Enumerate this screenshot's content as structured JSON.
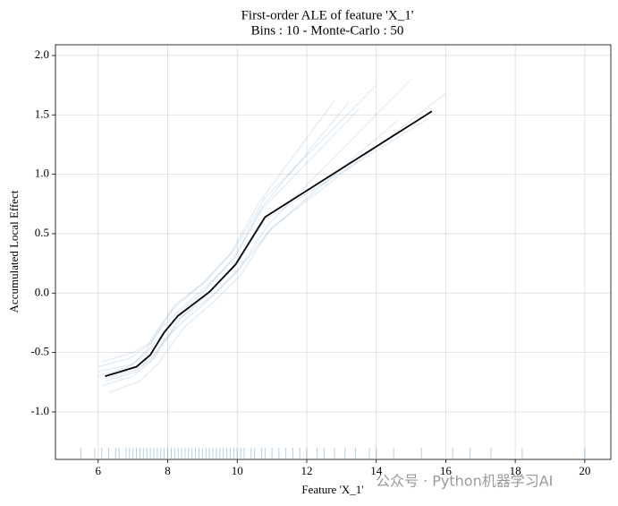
{
  "chart_data": {
    "type": "ale",
    "title": "First-order ALE of feature 'X_1'",
    "subtitle": "Bins : 10 - Monte-Carlo : 50",
    "x_label": "Feature 'X_1'",
    "y_label": "Accumulated Local Effect",
    "watermark": "公众号 · Python机器学习AI",
    "xlim": [
      4.77,
      20.75
    ],
    "ylim": [
      -1.4,
      2.09
    ],
    "xticks": [
      6,
      8,
      10,
      12,
      14,
      16,
      18,
      20
    ],
    "yticks": [
      {
        "value": -1.0,
        "label": "-1.0"
      },
      -0.5,
      {
        "value": 0.0,
        "label": "0.0"
      },
      0.5,
      {
        "value": 1.0,
        "label": "1.0"
      },
      1.5,
      {
        "value": 2.0,
        "label": "2.0"
      }
    ],
    "grid": true,
    "ale": {
      "color": "#000000",
      "x": [
        6.2,
        7.1,
        7.5,
        7.9,
        8.3,
        9.2,
        9.95,
        10.8,
        15.6
      ],
      "values": [
        -0.7,
        -0.62,
        -0.52,
        -0.33,
        -0.19,
        0.01,
        0.24,
        0.64,
        1.53
      ]
    },
    "monte_carlo_color": "#1f77b4",
    "monte_carlo": [
      {
        "x": [
          6.0,
          6.9,
          7.4,
          7.8,
          8.2,
          9.0,
          9.8,
          10.6,
          12.8
        ],
        "values": [
          -0.62,
          -0.55,
          -0.45,
          -0.27,
          -0.12,
          0.08,
          0.33,
          0.75,
          1.62
        ]
      },
      {
        "x": [
          6.1,
          7.0,
          7.5,
          7.9,
          8.4,
          9.2,
          10.0,
          10.9,
          15.0
        ],
        "values": [
          -0.78,
          -0.7,
          -0.58,
          -0.4,
          -0.25,
          -0.05,
          0.18,
          0.58,
          1.8
        ]
      },
      {
        "x": [
          6.2,
          7.1,
          7.6,
          8.0,
          8.3,
          9.3,
          10.1,
          11.0,
          16.0
        ],
        "values": [
          -0.74,
          -0.66,
          -0.52,
          -0.36,
          -0.22,
          -0.02,
          0.22,
          0.55,
          1.68
        ]
      },
      {
        "x": [
          6.0,
          7.0,
          7.4,
          7.8,
          8.3,
          9.1,
          9.9,
          10.7,
          13.5
        ],
        "values": [
          -0.66,
          -0.6,
          -0.48,
          -0.3,
          -0.15,
          0.05,
          0.28,
          0.7,
          1.55
        ]
      },
      {
        "x": [
          6.3,
          7.2,
          7.7,
          8.1,
          8.5,
          9.3,
          10.1,
          10.9,
          14.6
        ],
        "values": [
          -0.84,
          -0.74,
          -0.6,
          -0.44,
          -0.28,
          -0.08,
          0.15,
          0.52,
          1.45
        ]
      },
      {
        "x": [
          6.1,
          7.0,
          7.5,
          7.9,
          8.2,
          9.1,
          9.9,
          10.8,
          14.0
        ],
        "values": [
          -0.58,
          -0.5,
          -0.42,
          -0.24,
          -0.1,
          0.1,
          0.36,
          0.8,
          1.75
        ]
      },
      {
        "x": [
          6.2,
          7.1,
          7.6,
          8.0,
          8.4,
          9.2,
          10.0,
          10.8,
          15.5
        ],
        "values": [
          -0.72,
          -0.64,
          -0.55,
          -0.38,
          -0.2,
          0.0,
          0.25,
          0.62,
          1.47
        ]
      },
      {
        "x": [
          6.0,
          6.9,
          7.4,
          7.9,
          8.3,
          9.1,
          9.9,
          10.7,
          13.2
        ],
        "values": [
          -0.7,
          -0.62,
          -0.5,
          -0.32,
          -0.18,
          0.03,
          0.3,
          0.72,
          1.6
        ]
      }
    ],
    "rug": [
      5.5,
      5.9,
      6.1,
      6.3,
      6.5,
      6.6,
      6.8,
      6.9,
      7.0,
      7.1,
      7.2,
      7.3,
      7.4,
      7.5,
      7.6,
      7.7,
      7.8,
      7.9,
      8.0,
      8.1,
      8.2,
      8.3,
      8.4,
      8.5,
      8.6,
      8.7,
      8.8,
      8.9,
      9.0,
      9.1,
      9.2,
      9.3,
      9.4,
      9.5,
      9.6,
      9.7,
      9.8,
      9.9,
      10.0,
      10.1,
      10.2,
      10.4,
      10.5,
      10.7,
      10.8,
      11.0,
      11.2,
      11.4,
      11.6,
      11.8,
      12.0,
      12.3,
      12.5,
      12.8,
      13.1,
      13.4,
      13.8,
      14.0,
      14.5,
      15.3,
      16.2,
      16.7,
      17.3,
      18.2,
      20.0
    ]
  }
}
